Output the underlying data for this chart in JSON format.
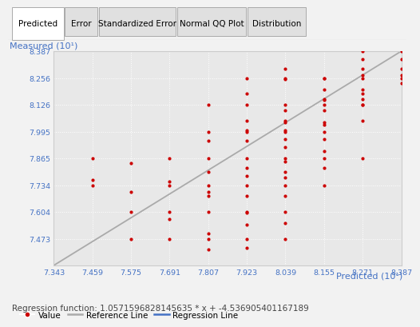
{
  "title_tabs": [
    "Predicted",
    "Error",
    "Standardized Error",
    "Normal QQ Plot",
    "Distribution"
  ],
  "active_tab": "Predicted",
  "xlabel": "Predicted (10¹)",
  "ylabel": "Measured (10¹)",
  "xlim": [
    7.343,
    8.387
  ],
  "ylim": [
    7.343,
    8.387
  ],
  "xticks": [
    7.343,
    7.459,
    7.575,
    7.691,
    7.807,
    7.923,
    8.039,
    8.155,
    8.271,
    8.387
  ],
  "yticks": [
    7.473,
    7.604,
    7.734,
    7.865,
    7.995,
    8.126,
    8.256,
    8.387
  ],
  "ytick_top": 8.387,
  "regression_slope": 1.0571596828145635,
  "regression_intercept": -4.536905401167189,
  "regression_label": "Regression function: 1.0571596828145635 * x + -4.536905401167189",
  "ref_line_color": "#aaaaaa",
  "reg_line_color": "#4472C4",
  "scatter_color": "#CC0000",
  "bg_color": "#f2f2f2",
  "plot_bg_color": "#e8e8e8",
  "grid_color": "#ffffff",
  "tick_color": "#4472C4",
  "label_color": "#4472C4",
  "tab_active_color": "#ffffff",
  "tab_inactive_color": "#e0e0e0",
  "tab_border_color": "#aaaaaa",
  "scatter_points": [
    [
      7.459,
      7.734
    ],
    [
      7.459,
      7.865
    ],
    [
      7.459,
      7.76
    ],
    [
      7.575,
      7.604
    ],
    [
      7.575,
      7.473
    ],
    [
      7.575,
      7.7
    ],
    [
      7.575,
      7.84
    ],
    [
      7.691,
      7.734
    ],
    [
      7.691,
      7.604
    ],
    [
      7.691,
      7.865
    ],
    [
      7.691,
      7.473
    ],
    [
      7.691,
      7.57
    ],
    [
      7.691,
      7.75
    ],
    [
      7.807,
      7.604
    ],
    [
      7.807,
      7.473
    ],
    [
      7.807,
      7.734
    ],
    [
      7.807,
      7.865
    ],
    [
      7.807,
      7.995
    ],
    [
      7.807,
      8.126
    ],
    [
      7.807,
      7.5
    ],
    [
      7.807,
      7.68
    ],
    [
      7.807,
      7.7
    ],
    [
      7.807,
      7.8
    ],
    [
      7.807,
      7.42
    ],
    [
      7.807,
      7.95
    ],
    [
      7.923,
      7.604
    ],
    [
      7.923,
      7.734
    ],
    [
      7.923,
      7.865
    ],
    [
      7.923,
      7.995
    ],
    [
      7.923,
      8.126
    ],
    [
      7.923,
      8.256
    ],
    [
      7.923,
      7.473
    ],
    [
      7.923,
      7.78
    ],
    [
      7.923,
      7.43
    ],
    [
      7.923,
      7.6
    ],
    [
      7.923,
      7.68
    ],
    [
      7.923,
      7.82
    ],
    [
      7.923,
      7.95
    ],
    [
      7.923,
      8.0
    ],
    [
      7.923,
      8.05
    ],
    [
      7.923,
      8.18
    ],
    [
      7.923,
      7.54
    ],
    [
      8.039,
      7.865
    ],
    [
      8.039,
      7.995
    ],
    [
      8.039,
      8.126
    ],
    [
      8.039,
      8.256
    ],
    [
      8.039,
      7.734
    ],
    [
      8.039,
      7.604
    ],
    [
      8.039,
      7.473
    ],
    [
      8.039,
      8.039
    ],
    [
      8.039,
      7.8
    ],
    [
      8.039,
      7.68
    ],
    [
      8.039,
      7.92
    ],
    [
      8.039,
      8.05
    ],
    [
      8.039,
      8.25
    ],
    [
      8.039,
      8.3
    ],
    [
      8.039,
      7.96
    ],
    [
      8.039,
      8.1
    ],
    [
      8.039,
      7.85
    ],
    [
      8.039,
      7.77
    ],
    [
      8.039,
      8.0
    ],
    [
      8.039,
      7.55
    ],
    [
      8.155,
      7.995
    ],
    [
      8.155,
      8.126
    ],
    [
      8.155,
      8.256
    ],
    [
      8.155,
      7.865
    ],
    [
      8.155,
      7.734
    ],
    [
      8.155,
      8.155
    ],
    [
      8.155,
      8.039
    ],
    [
      8.155,
      8.2
    ],
    [
      8.155,
      7.96
    ],
    [
      8.155,
      8.1
    ],
    [
      8.155,
      8.03
    ],
    [
      8.155,
      8.255
    ],
    [
      8.155,
      7.9
    ],
    [
      8.155,
      8.15
    ],
    [
      8.155,
      7.82
    ],
    [
      8.271,
      8.126
    ],
    [
      8.271,
      8.256
    ],
    [
      8.271,
      8.387
    ],
    [
      8.271,
      7.865
    ],
    [
      8.271,
      8.271
    ],
    [
      8.271,
      8.126
    ],
    [
      8.271,
      8.2
    ],
    [
      8.271,
      8.35
    ],
    [
      8.271,
      8.155
    ],
    [
      8.271,
      8.3
    ],
    [
      8.271,
      8.05
    ],
    [
      8.271,
      8.18
    ],
    [
      8.387,
      8.387
    ],
    [
      8.387,
      8.256
    ],
    [
      8.387,
      8.271
    ],
    [
      8.387,
      8.3
    ],
    [
      8.387,
      8.35
    ],
    [
      8.387,
      8.23
    ]
  ]
}
